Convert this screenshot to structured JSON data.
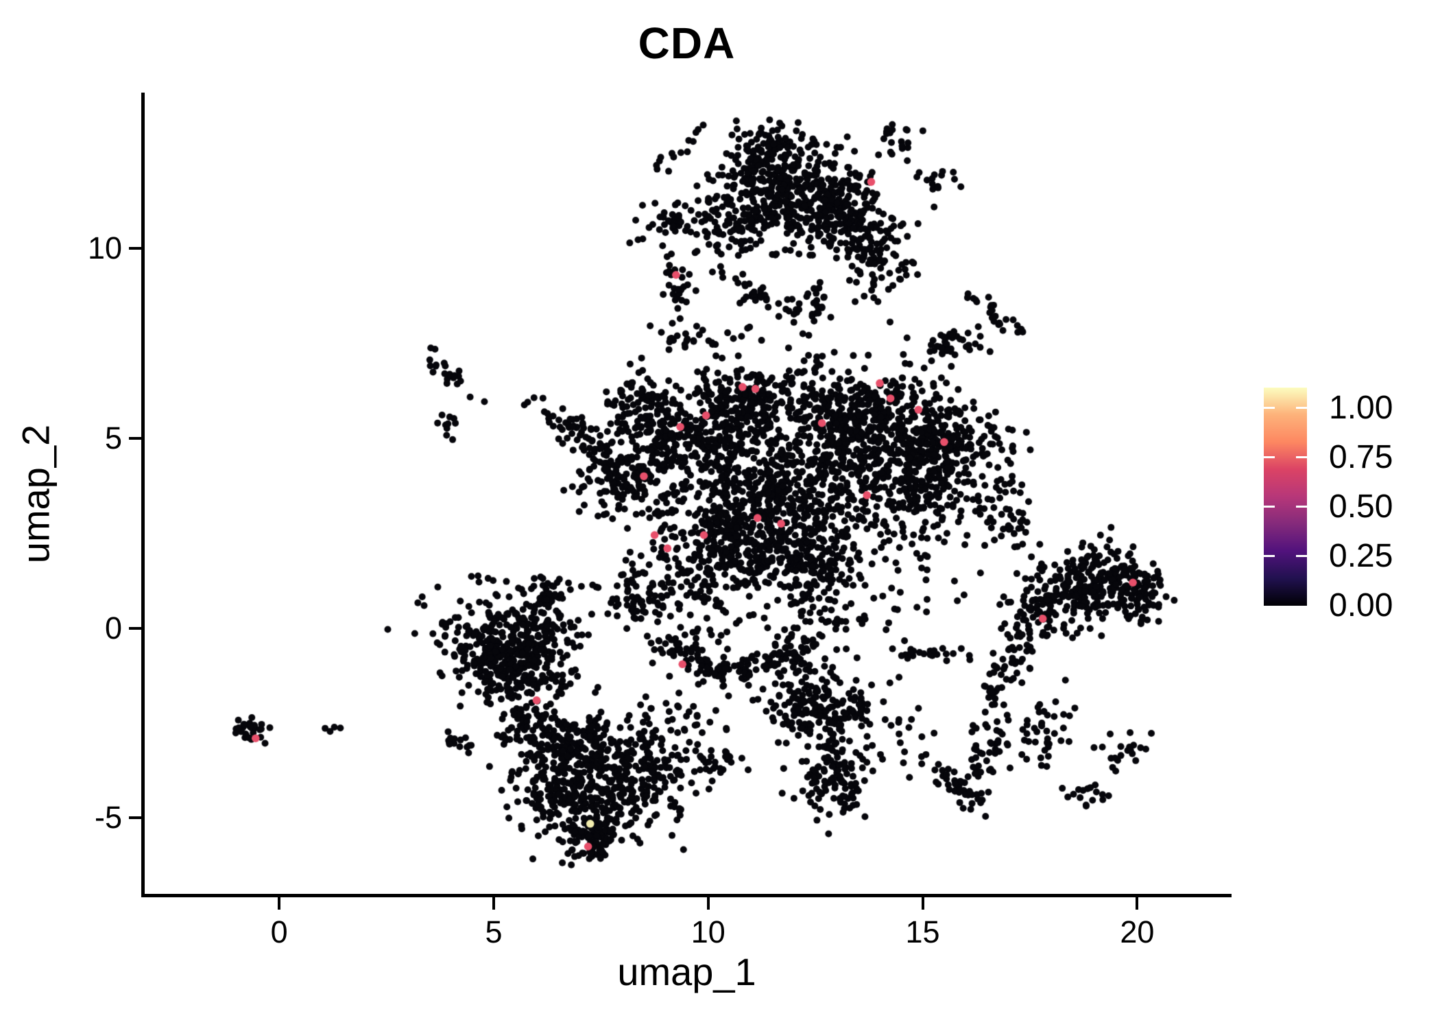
{
  "title": "CDA",
  "axes": {
    "x": {
      "label": "umap_1",
      "ticks": [
        0,
        5,
        10,
        15,
        20
      ]
    },
    "y": {
      "label": "umap_2",
      "ticks": [
        -5,
        0,
        5,
        10
      ]
    }
  },
  "colorbar": {
    "labels": [
      "1.00",
      "0.75",
      "0.50",
      "0.25",
      "0.00"
    ],
    "values": [
      1.0,
      0.75,
      0.5,
      0.25,
      0.0
    ],
    "vmax": 1.104,
    "stops": [
      [
        0.0,
        "#000004"
      ],
      [
        0.125,
        "#21114f"
      ],
      [
        0.25,
        "#51127c"
      ],
      [
        0.375,
        "#842a7b"
      ],
      [
        0.5,
        "#b73779"
      ],
      [
        0.625,
        "#db4365"
      ],
      [
        0.75,
        "#fd8761"
      ],
      [
        0.875,
        "#fdb27a"
      ],
      [
        1.0,
        "#fcfdbf"
      ]
    ]
  },
  "chart_data": {
    "type": "scatter",
    "title": "CDA",
    "xlabel": "umap_1",
    "ylabel": "umap_2",
    "xlim": [
      -3.2,
      22.2
    ],
    "ylim": [
      -7.05,
      14.1
    ],
    "grid": false,
    "legend_position": "right",
    "point_radius": 5,
    "colors": {
      "base": "#06060b",
      "mid": "#e8506b",
      "high": "#f2edaf"
    },
    "clusters": [
      [
        12.1,
        11.5,
        0.85,
        0.7,
        -15,
        400
      ],
      [
        11.3,
        12.6,
        0.45,
        0.35,
        25,
        60
      ],
      [
        13.0,
        10.9,
        0.5,
        0.5,
        0,
        110
      ],
      [
        13.9,
        9.9,
        0.45,
        0.55,
        0,
        100
      ],
      [
        10.6,
        10.8,
        0.6,
        0.65,
        0,
        110
      ],
      [
        9.2,
        10.7,
        0.3,
        0.4,
        -50,
        40
      ],
      [
        9.25,
        9.05,
        0.15,
        0.4,
        8,
        28
      ],
      [
        11.2,
        8.8,
        0.65,
        0.16,
        -35,
        40
      ],
      [
        12.55,
        8.5,
        0.14,
        0.33,
        0,
        20
      ],
      [
        9.7,
        7.6,
        0.45,
        0.35,
        0,
        25
      ],
      [
        9.1,
        12.4,
        0.2,
        0.12,
        20,
        8
      ],
      [
        9.8,
        13.0,
        0.12,
        0.1,
        0,
        5
      ],
      [
        14.4,
        13.0,
        0.18,
        0.35,
        0,
        18
      ],
      [
        15.3,
        11.6,
        0.25,
        0.3,
        0,
        14
      ],
      [
        15.75,
        7.5,
        0.42,
        0.2,
        8,
        40
      ],
      [
        16.9,
        8.05,
        0.33,
        0.12,
        -38,
        18
      ],
      [
        16.3,
        8.6,
        0.15,
        0.2,
        0,
        6
      ],
      [
        9.2,
        4.9,
        0.95,
        0.75,
        0,
        330
      ],
      [
        8.4,
        6.1,
        0.35,
        0.3,
        -30,
        45
      ],
      [
        10.9,
        5.9,
        0.75,
        0.5,
        0,
        200
      ],
      [
        13.5,
        5.4,
        1.1,
        0.75,
        0,
        460
      ],
      [
        14.9,
        3.95,
        0.85,
        0.85,
        0,
        340
      ],
      [
        15.8,
        5.0,
        0.45,
        0.4,
        0,
        90
      ],
      [
        11.6,
        3.7,
        1.15,
        0.85,
        0,
        430
      ],
      [
        10.7,
        2.2,
        1.05,
        0.7,
        0,
        400
      ],
      [
        12.4,
        1.8,
        0.6,
        0.5,
        0,
        150
      ],
      [
        7.9,
        3.9,
        0.5,
        0.45,
        0,
        110
      ],
      [
        6.9,
        5.2,
        0.6,
        0.2,
        -35,
        50
      ],
      [
        4.0,
        6.7,
        0.45,
        0.14,
        -40,
        22
      ],
      [
        4.0,
        5.3,
        0.18,
        0.25,
        0,
        10
      ],
      [
        8.4,
        0.9,
        0.5,
        0.45,
        0,
        80
      ],
      [
        9.3,
        -0.55,
        0.45,
        0.18,
        -25,
        45
      ],
      [
        10.55,
        -1.1,
        0.55,
        0.16,
        8,
        45
      ],
      [
        11.8,
        -0.7,
        0.45,
        0.18,
        28,
        38
      ],
      [
        12.3,
        -0.1,
        0.45,
        0.5,
        0,
        55
      ],
      [
        11.5,
        6.8,
        1.2,
        0.8,
        0,
        40
      ],
      [
        13.0,
        0.5,
        1.0,
        0.8,
        0,
        35
      ],
      [
        15.0,
        1.5,
        0.8,
        0.8,
        0,
        25
      ],
      [
        10.0,
        0.2,
        0.8,
        0.6,
        0,
        30
      ],
      [
        18.9,
        1.15,
        0.75,
        0.5,
        12,
        260
      ],
      [
        20.0,
        0.95,
        0.3,
        0.4,
        0,
        70
      ],
      [
        17.6,
        0.3,
        0.35,
        0.35,
        0,
        60
      ],
      [
        16.9,
        -1.3,
        0.22,
        0.8,
        -18,
        60
      ],
      [
        17.2,
        2.5,
        0.3,
        0.3,
        0,
        25
      ],
      [
        16.9,
        4.2,
        0.4,
        0.7,
        0,
        30
      ],
      [
        12.6,
        -2.1,
        0.65,
        0.5,
        0,
        200
      ],
      [
        12.9,
        -3.9,
        0.4,
        0.55,
        15,
        110
      ],
      [
        15.3,
        -0.7,
        0.5,
        0.12,
        0,
        22
      ],
      [
        16.0,
        -4.3,
        0.45,
        0.16,
        -42,
        40
      ],
      [
        16.55,
        -3.3,
        0.18,
        0.45,
        -12,
        35
      ],
      [
        9.3,
        -2.4,
        0.75,
        0.55,
        0,
        40
      ],
      [
        10.2,
        -3.6,
        0.3,
        0.25,
        0,
        30
      ],
      [
        14.3,
        -3.2,
        0.4,
        0.5,
        0,
        25
      ],
      [
        17.8,
        -2.8,
        0.3,
        0.6,
        -25,
        40
      ],
      [
        19.6,
        -3.1,
        0.3,
        0.25,
        0,
        20
      ],
      [
        18.8,
        -4.45,
        0.25,
        0.18,
        0,
        16
      ],
      [
        5.2,
        -0.8,
        0.8,
        0.55,
        -42,
        380
      ],
      [
        6.1,
        -0.2,
        0.5,
        0.55,
        0,
        110
      ],
      [
        6.15,
        0.8,
        0.3,
        0.25,
        0,
        45
      ],
      [
        5.85,
        -2.55,
        0.3,
        0.28,
        0,
        55
      ],
      [
        4.1,
        -2.95,
        0.22,
        0.1,
        -20,
        14
      ],
      [
        7.3,
        -4.3,
        0.85,
        0.7,
        0,
        380
      ],
      [
        7.0,
        -3.0,
        0.7,
        0.38,
        12,
        140
      ],
      [
        7.3,
        -5.5,
        0.38,
        0.3,
        0,
        80
      ],
      [
        8.8,
        -3.6,
        0.5,
        0.55,
        0,
        90
      ],
      [
        5.9,
        -4.5,
        0.22,
        0.38,
        0,
        22
      ],
      [
        -0.7,
        -2.7,
        0.2,
        0.14,
        -35,
        32
      ],
      [
        1.2,
        -2.75,
        0.25,
        0.15,
        0,
        4
      ],
      [
        4.9,
        1.2,
        0.18,
        0.15,
        0,
        5
      ]
    ],
    "highlights": [
      [
        13.8,
        11.75,
        0.62
      ],
      [
        9.25,
        9.3,
        0.62
      ],
      [
        10.8,
        6.35,
        0.62
      ],
      [
        11.1,
        6.3,
        0.62
      ],
      [
        9.95,
        5.6,
        0.62
      ],
      [
        9.35,
        5.3,
        0.62
      ],
      [
        14.0,
        6.45,
        0.62
      ],
      [
        14.25,
        6.05,
        0.62
      ],
      [
        14.9,
        5.75,
        0.62
      ],
      [
        12.65,
        5.4,
        0.62
      ],
      [
        15.5,
        4.9,
        0.62
      ],
      [
        8.5,
        4.0,
        0.62
      ],
      [
        13.7,
        3.5,
        0.62
      ],
      [
        11.15,
        2.9,
        0.62
      ],
      [
        11.7,
        2.75,
        0.62
      ],
      [
        8.75,
        2.45,
        0.62
      ],
      [
        9.9,
        2.45,
        0.62
      ],
      [
        9.05,
        2.1,
        0.62
      ],
      [
        6.0,
        -1.9,
        0.62
      ],
      [
        9.4,
        -0.95,
        0.62
      ],
      [
        17.8,
        0.25,
        0.62
      ],
      [
        19.9,
        1.2,
        0.62
      ],
      [
        7.2,
        -5.75,
        0.62
      ],
      [
        -0.55,
        -2.9,
        0.62
      ],
      [
        7.25,
        -5.15,
        0.95
      ]
    ]
  }
}
